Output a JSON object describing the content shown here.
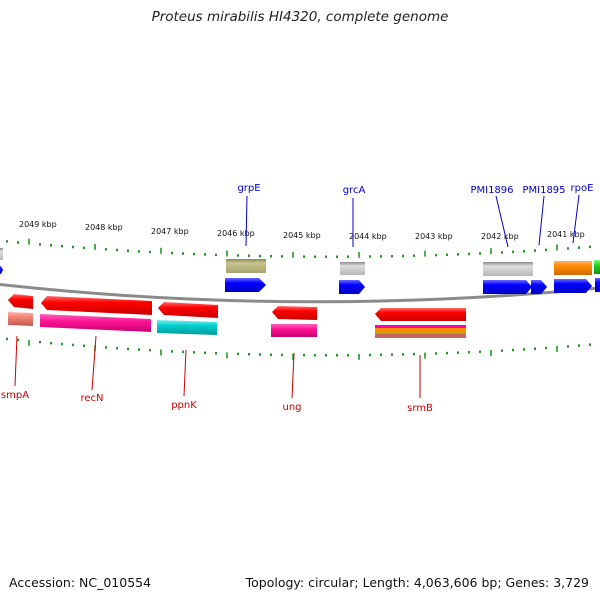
{
  "title": "Proteus mirabilis HI4320, complete genome",
  "accession": "Accession: NC_010554",
  "stats": "Topology: circular; Length: 4,063,606 bp; Genes: 3,729",
  "colors": {
    "backbone": "#8a8a8a",
    "tick": "#1f9a1f",
    "top_label": "#0000cc",
    "bottom_label": "#cc0000"
  },
  "kbp_labels": [
    "2049 kbp",
    "2048 kbp",
    "2047 kbp",
    "2046 kbp",
    "2045 kbp",
    "2044 kbp",
    "2043 kbp",
    "2042 kbp",
    "2041 kbp"
  ],
  "top_genes": [
    {
      "name": "grpE",
      "label": "grpE"
    },
    {
      "name": "grcA",
      "label": "grcA"
    },
    {
      "name": "PMI1896",
      "label": "PMI1896"
    },
    {
      "name": "PMI1895",
      "label": "PMI1895"
    },
    {
      "name": "rpoE",
      "label": "rpoE"
    }
  ],
  "bottom_genes": [
    {
      "name": "smpA",
      "label": "smpA"
    },
    {
      "name": "recN",
      "label": "recN"
    },
    {
      "name": "ppnK",
      "label": "ppnK"
    },
    {
      "name": "ung",
      "label": "ung"
    },
    {
      "name": "srmB",
      "label": "srmB"
    }
  ]
}
